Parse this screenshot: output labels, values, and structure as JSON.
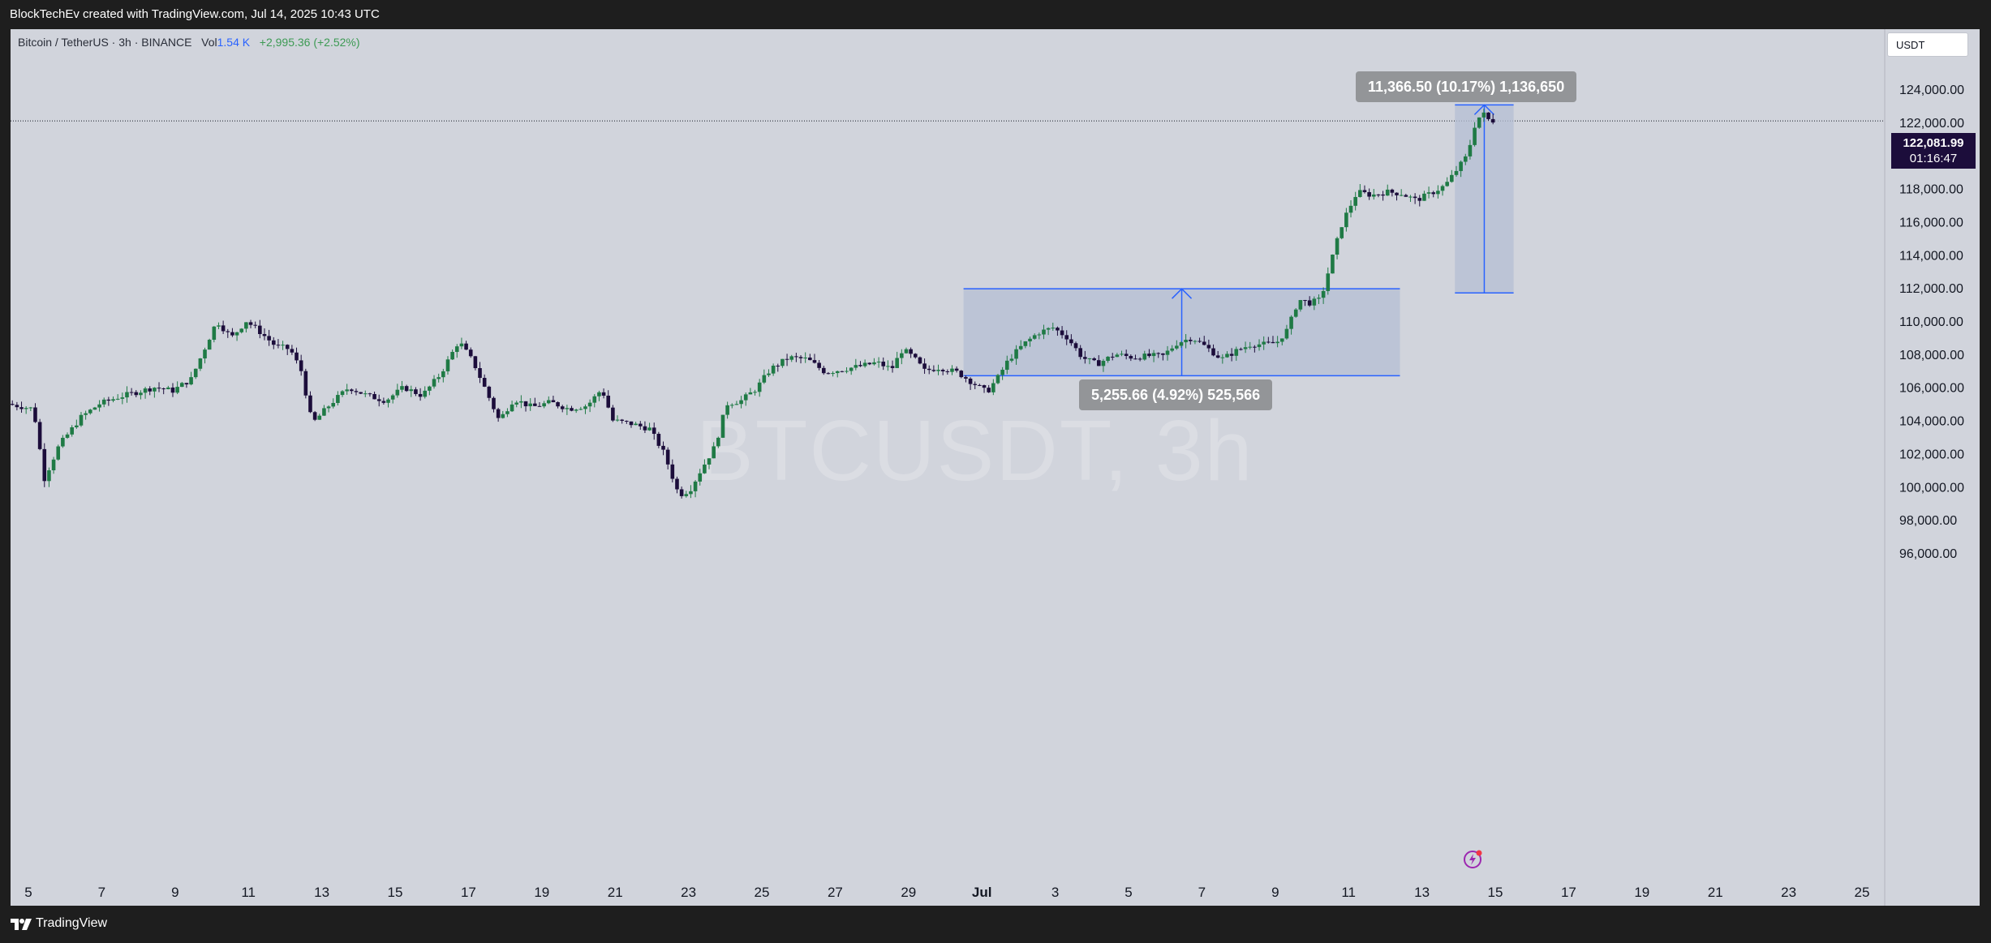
{
  "header": {
    "attribution": "BlockTechEv created with TradingView.com, Jul 14, 2025 10:43 UTC"
  },
  "legend": {
    "symbol": "Bitcoin / TetherUS · 3h · BINANCE",
    "vol_label": "Vol",
    "vol_value": "1.54 K",
    "change": "+2,995.36 (+2.52%)"
  },
  "currency_button": "USDT",
  "watermark": "BTCUSDT, 3h",
  "price_badge": {
    "price": "122,081.99",
    "countdown": "01:16:47"
  },
  "measures": [
    {
      "label": "5,255.66 (4.92%) 525,566"
    },
    {
      "label": "11,366.50 (10.17%) 1,136,650"
    }
  ],
  "footer": {
    "brand": "TradingView"
  },
  "colors": {
    "background": "#d1d4dc",
    "up": "#1f7a45",
    "down": "#1c0d3b",
    "measure_fill": "#b4bfd4",
    "measure_line": "#2962ff"
  },
  "chart_data": {
    "type": "candlestick",
    "symbol": "BTCUSDT",
    "interval": "3h",
    "ylim": [
      95500,
      125500
    ],
    "yticks": [
      96000,
      98000,
      100000,
      102000,
      104000,
      106000,
      108000,
      110000,
      112000,
      114000,
      116000,
      118000,
      120000,
      122000,
      124000
    ],
    "ytick_labels": [
      "96,000.00",
      "98,000.00",
      "100,000.00",
      "102,000.00",
      "104,000.00",
      "106,000.00",
      "108,000.00",
      "110,000.00",
      "112,000.00",
      "114,000.00",
      "116,000.00",
      "118,000.00",
      "120,000.00",
      "122,000.00",
      "124,000.00"
    ],
    "xticks": [
      {
        "label": "5",
        "day": 5
      },
      {
        "label": "7",
        "day": 7
      },
      {
        "label": "9",
        "day": 9
      },
      {
        "label": "11",
        "day": 11
      },
      {
        "label": "13",
        "day": 13
      },
      {
        "label": "15",
        "day": 15
      },
      {
        "label": "17",
        "day": 17
      },
      {
        "label": "19",
        "day": 19
      },
      {
        "label": "21",
        "day": 21
      },
      {
        "label": "23",
        "day": 23
      },
      {
        "label": "25",
        "day": 25
      },
      {
        "label": "27",
        "day": 27
      },
      {
        "label": "29",
        "day": 29
      },
      {
        "label": "Jul",
        "day": 31
      },
      {
        "label": "3",
        "day": 33
      },
      {
        "label": "5",
        "day": 35
      },
      {
        "label": "7",
        "day": 37
      },
      {
        "label": "9",
        "day": 39
      },
      {
        "label": "11",
        "day": 41
      },
      {
        "label": "13",
        "day": 43
      },
      {
        "label": "15",
        "day": 45
      },
      {
        "label": "17",
        "day": 47
      },
      {
        "label": "19",
        "day": 49
      },
      {
        "label": "21",
        "day": 51
      },
      {
        "label": "23",
        "day": 53
      },
      {
        "label": "25",
        "day": 55
      }
    ],
    "current_price": 122081.99,
    "price_path": [
      [
        4.5,
        105000
      ],
      [
        5.2,
        104700
      ],
      [
        5.5,
        100500
      ],
      [
        5.9,
        102500
      ],
      [
        6.5,
        104200
      ],
      [
        7.0,
        105000
      ],
      [
        7.5,
        105400
      ],
      [
        8.5,
        106000
      ],
      [
        9.0,
        105800
      ],
      [
        9.5,
        106500
      ],
      [
        9.9,
        108500
      ],
      [
        10.2,
        110000
      ],
      [
        10.6,
        109000
      ],
      [
        11.0,
        110000
      ],
      [
        11.3,
        109500
      ],
      [
        11.8,
        108500
      ],
      [
        12.2,
        108300
      ],
      [
        12.5,
        107000
      ],
      [
        12.8,
        103800
      ],
      [
        13.3,
        105000
      ],
      [
        13.8,
        106000
      ],
      [
        14.3,
        105500
      ],
      [
        14.8,
        105200
      ],
      [
        15.3,
        106000
      ],
      [
        15.8,
        105500
      ],
      [
        16.3,
        106800
      ],
      [
        16.8,
        108800
      ],
      [
        17.2,
        107500
      ],
      [
        17.6,
        105500
      ],
      [
        17.9,
        104000
      ],
      [
        18.3,
        105300
      ],
      [
        18.8,
        104800
      ],
      [
        19.3,
        105100
      ],
      [
        19.8,
        104700
      ],
      [
        20.3,
        104900
      ],
      [
        20.7,
        105900
      ],
      [
        21.0,
        104000
      ],
      [
        21.5,
        103800
      ],
      [
        22.0,
        103500
      ],
      [
        22.4,
        102000
      ],
      [
        22.8,
        99500
      ],
      [
        23.1,
        99800
      ],
      [
        23.4,
        101000
      ],
      [
        23.8,
        102500
      ],
      [
        24.1,
        105000
      ],
      [
        24.5,
        105200
      ],
      [
        24.9,
        105900
      ],
      [
        25.3,
        107100
      ],
      [
        25.8,
        107800
      ],
      [
        26.3,
        107700
      ],
      [
        26.8,
        106900
      ],
      [
        27.3,
        107100
      ],
      [
        27.8,
        107300
      ],
      [
        28.2,
        107500
      ],
      [
        28.6,
        107100
      ],
      [
        28.9,
        108300
      ],
      [
        29.2,
        107800
      ],
      [
        29.5,
        107000
      ],
      [
        29.9,
        107200
      ],
      [
        30.4,
        106900
      ],
      [
        30.8,
        106300
      ],
      [
        31.2,
        105700
      ],
      [
        31.5,
        106600
      ],
      [
        31.8,
        107700
      ],
      [
        32.2,
        108600
      ],
      [
        32.6,
        109300
      ],
      [
        33.0,
        109600
      ],
      [
        33.4,
        109000
      ],
      [
        33.8,
        107800
      ],
      [
        34.2,
        107400
      ],
      [
        34.7,
        108000
      ],
      [
        35.2,
        107800
      ],
      [
        35.6,
        107900
      ],
      [
        36.0,
        107900
      ],
      [
        36.4,
        108700
      ],
      [
        36.8,
        109000
      ],
      [
        37.2,
        108400
      ],
      [
        37.6,
        107700
      ],
      [
        38.0,
        108200
      ],
      [
        38.4,
        108600
      ],
      [
        38.8,
        108600
      ],
      [
        39.1,
        108700
      ],
      [
        39.4,
        109500
      ],
      [
        39.7,
        111300
      ],
      [
        40.0,
        111100
      ],
      [
        40.3,
        111300
      ],
      [
        40.6,
        113700
      ],
      [
        40.9,
        116000
      ],
      [
        41.3,
        117800
      ],
      [
        41.7,
        117600
      ],
      [
        42.1,
        117800
      ],
      [
        42.5,
        117700
      ],
      [
        42.9,
        117300
      ],
      [
        43.3,
        117700
      ],
      [
        43.7,
        118200
      ],
      [
        44.0,
        119100
      ],
      [
        44.3,
        120000
      ],
      [
        44.5,
        121800
      ],
      [
        44.7,
        122600
      ],
      [
        44.9,
        122100
      ]
    ],
    "measures": [
      {
        "from_day": 30.5,
        "to_day": 42.4,
        "low": 106700,
        "high": 111950,
        "label": "5,255.66 (4.92%) 525,566"
      },
      {
        "from_day": 43.9,
        "to_day": 45.5,
        "low": 111700,
        "high": 123050,
        "label": "11,366.50 (10.17%) 1,136,650"
      }
    ]
  }
}
